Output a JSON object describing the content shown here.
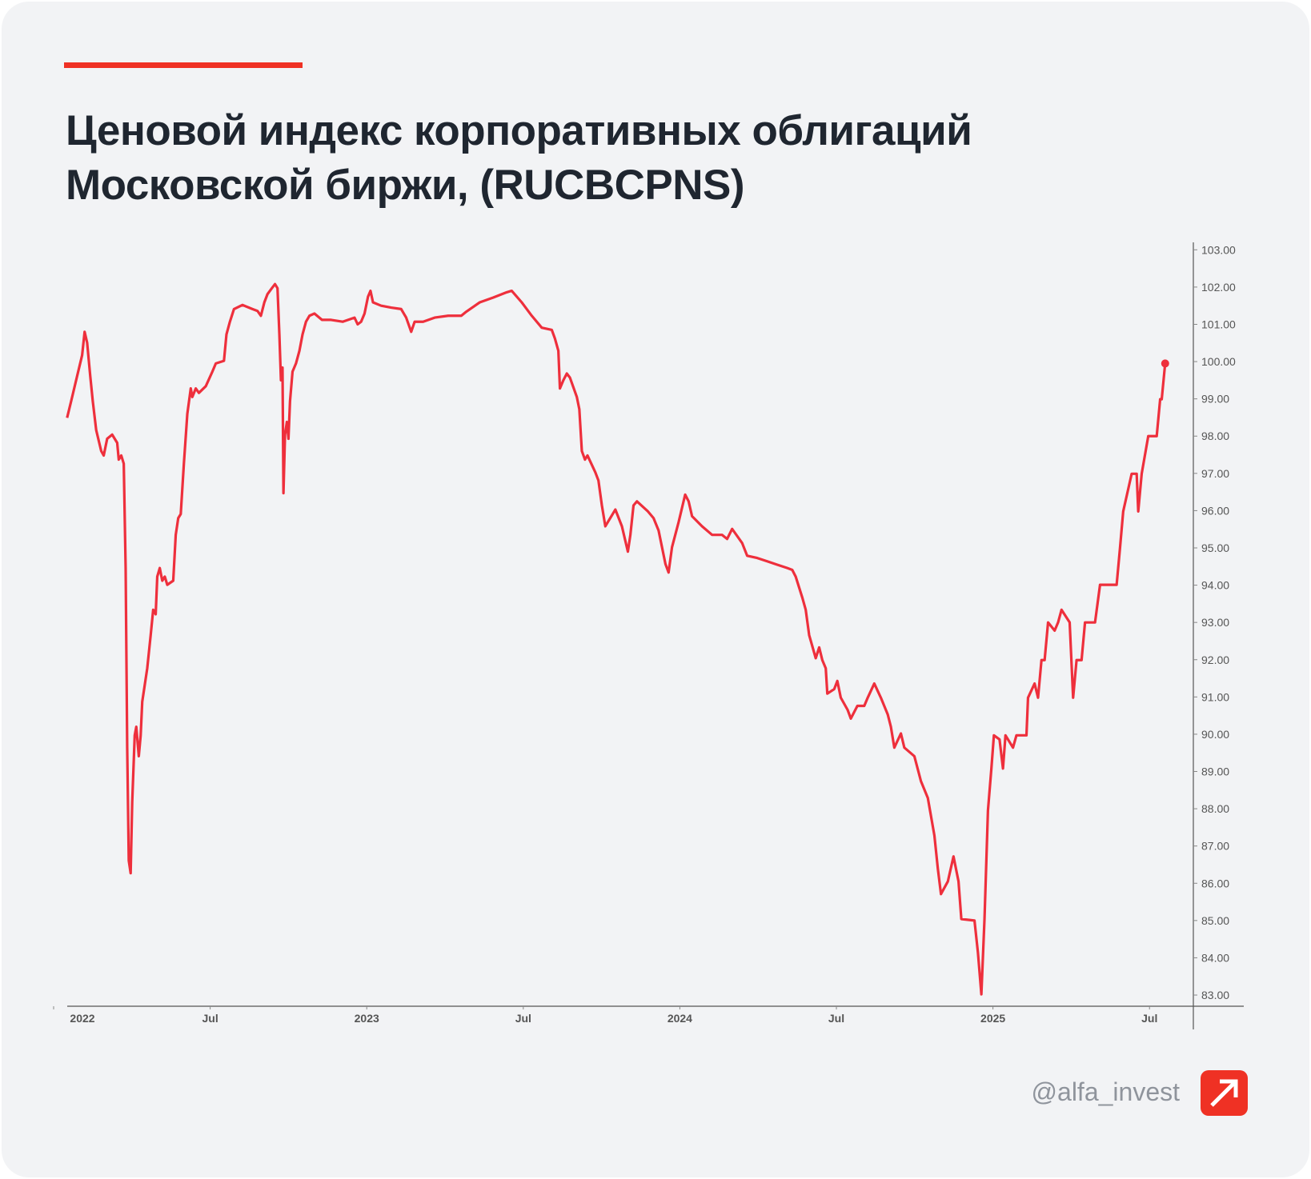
{
  "chart_data": {
    "type": "line",
    "title": "Ценовой индекс корпоративных облигаций Московской биржи, (RUCBCPNS)",
    "color": "#ee2f3c",
    "x": [
      2022.043,
      2022.056,
      2022.075,
      2022.091,
      2022.099,
      2022.107,
      2022.117,
      2022.125,
      2022.136,
      2022.152,
      2022.16,
      2022.171,
      2022.187,
      2022.203,
      2022.208,
      2022.216,
      2022.224,
      2022.23,
      2022.235,
      2022.24,
      2022.246,
      2022.251,
      2022.259,
      2022.264,
      2022.272,
      2022.278,
      2022.283,
      2022.299,
      2022.31,
      2022.318,
      2022.326,
      2022.331,
      2022.339,
      2022.347,
      2022.355,
      2022.363,
      2022.382,
      2022.39,
      2022.398,
      2022.406,
      2022.416,
      2022.427,
      2022.438,
      2022.443,
      2022.454,
      2022.464,
      2022.486,
      2022.507,
      2022.518,
      2022.544,
      2022.552,
      2022.563,
      2022.576,
      2022.603,
      2022.635,
      2022.651,
      2022.662,
      2022.673,
      2022.683,
      2022.697,
      2022.707,
      2022.715,
      2022.721,
      2022.726,
      2022.731,
      2022.734,
      2022.739,
      2022.745,
      2022.75,
      2022.755,
      2022.763,
      2022.774,
      2022.785,
      2022.795,
      2022.806,
      2022.817,
      2022.833,
      2022.857,
      2022.886,
      2022.923,
      2022.961,
      2022.971,
      2022.982,
      2022.993,
      2023.004,
      2023.012,
      2023.02,
      2023.046,
      2023.078,
      2023.11,
      2023.126,
      2023.142,
      2023.153,
      2023.18,
      2023.217,
      2023.26,
      2023.302,
      2023.318,
      2023.361,
      2023.404,
      2023.447,
      2023.463,
      2023.495,
      2023.527,
      2023.559,
      2023.591,
      2023.601,
      2023.612,
      2023.617,
      2023.628,
      2023.639,
      2023.649,
      2023.671,
      2023.679,
      2023.687,
      2023.697,
      2023.705,
      2023.73,
      2023.74,
      2023.751,
      2023.762,
      2023.794,
      2023.815,
      2023.834,
      2023.842,
      2023.852,
      2023.863,
      2023.898,
      2023.916,
      2023.932,
      2023.954,
      2023.964,
      2023.975,
      2023.996,
      2024.017,
      2024.028,
      2024.039,
      2024.071,
      2024.103,
      2024.135,
      2024.151,
      2024.167,
      2024.199,
      2024.215,
      2024.247,
      2024.279,
      2024.311,
      2024.343,
      2024.359,
      2024.37,
      2024.391,
      2024.402,
      2024.413,
      2024.434,
      2024.445,
      2024.455,
      2024.466,
      2024.471,
      2024.493,
      2024.503,
      2024.514,
      2024.536,
      2024.546,
      2024.567,
      2024.589,
      2024.6,
      2024.621,
      2024.642,
      2024.664,
      2024.674,
      2024.685,
      2024.706,
      2024.717,
      2024.749,
      2024.77,
      2024.792,
      2024.813,
      2024.824,
      2024.834,
      2024.856,
      2024.874,
      2024.89,
      2024.899,
      2024.941,
      2024.952,
      2024.963,
      2024.973,
      2024.984,
      2024.995,
      2025.003,
      2025.021,
      2025.032,
      2025.04,
      2025.064,
      2025.075,
      2025.107,
      2025.112,
      2025.133,
      2025.144,
      2025.155,
      2025.165,
      2025.176,
      2025.197,
      2025.208,
      2025.219,
      2025.245,
      2025.256,
      2025.267,
      2025.283,
      2025.294,
      2025.326,
      2025.342,
      2025.395,
      2025.406,
      2025.416,
      2025.443,
      2025.459,
      2025.464,
      2025.475,
      2025.496,
      2025.523,
      2025.534,
      2025.539,
      2025.55
    ],
    "values": [
      98.49,
      98.94,
      99.61,
      100.17,
      100.8,
      100.51,
      99.61,
      98.94,
      98.16,
      97.6,
      97.48,
      97.93,
      98.04,
      97.82,
      97.37,
      97.48,
      97.26,
      94.46,
      89.64,
      86.61,
      86.27,
      88.18,
      89.97,
      90.2,
      89.41,
      89.97,
      90.87,
      91.77,
      92.66,
      93.34,
      93.22,
      94.23,
      94.46,
      94.12,
      94.23,
      94.01,
      94.12,
      95.35,
      95.8,
      95.91,
      97.26,
      98.6,
      99.28,
      99.05,
      99.28,
      99.16,
      99.34,
      99.73,
      99.95,
      100.02,
      100.73,
      101.07,
      101.41,
      101.52,
      101.41,
      101.36,
      101.23,
      101.59,
      101.81,
      101.97,
      102.08,
      101.97,
      100.73,
      99.5,
      99.84,
      96.47,
      98.04,
      98.38,
      97.93,
      98.94,
      99.73,
      99.95,
      100.29,
      100.73,
      101.07,
      101.23,
      101.29,
      101.12,
      101.12,
      101.07,
      101.18,
      101.0,
      101.07,
      101.29,
      101.74,
      101.9,
      101.59,
      101.5,
      101.45,
      101.41,
      101.18,
      100.8,
      101.07,
      101.07,
      101.18,
      101.23,
      101.23,
      101.34,
      101.59,
      101.72,
      101.86,
      101.9,
      101.59,
      101.23,
      100.91,
      100.85,
      100.62,
      100.29,
      99.28,
      99.5,
      99.68,
      99.57,
      99.05,
      98.72,
      97.6,
      97.37,
      97.48,
      97.03,
      96.81,
      96.14,
      95.58,
      96.03,
      95.58,
      94.9,
      95.35,
      96.14,
      96.25,
      95.98,
      95.8,
      95.47,
      94.57,
      94.34,
      95.02,
      95.69,
      96.43,
      96.25,
      95.85,
      95.58,
      95.35,
      95.35,
      95.24,
      95.51,
      95.13,
      94.79,
      94.73,
      94.64,
      94.55,
      94.46,
      94.41,
      94.23,
      93.67,
      93.34,
      92.66,
      92.04,
      92.33,
      91.99,
      91.77,
      91.09,
      91.21,
      91.43,
      90.98,
      90.65,
      90.42,
      90.76,
      90.76,
      90.98,
      91.36,
      90.98,
      90.53,
      90.2,
      89.64,
      90.02,
      89.64,
      89.41,
      88.74,
      88.29,
      87.28,
      86.39,
      85.71,
      86.05,
      86.72,
      86.05,
      85.04,
      85.0,
      84.14,
      83.02,
      85.04,
      87.95,
      89.08,
      89.97,
      89.86,
      89.08,
      89.97,
      89.64,
      89.97,
      89.97,
      90.98,
      91.36,
      90.98,
      91.99,
      91.99,
      93.0,
      92.78,
      93.0,
      93.34,
      93.0,
      90.98,
      91.99,
      91.99,
      93.0,
      93.0,
      94.01,
      94.01,
      95.02,
      95.98,
      96.99,
      96.99,
      95.98,
      96.99,
      98.0,
      98.0,
      98.99,
      98.99,
      99.95
    ],
    "xlim": [
      2022,
      2025.64
    ],
    "xticks": [
      {
        "value": 2022,
        "label": "2022"
      },
      {
        "value": 2022.5,
        "label": "Jul"
      },
      {
        "value": 2023,
        "label": "2023"
      },
      {
        "value": 2023.5,
        "label": "Jul"
      },
      {
        "value": 2024,
        "label": "2024"
      },
      {
        "value": 2024.5,
        "label": "Jul"
      },
      {
        "value": 2025,
        "label": "2025"
      },
      {
        "value": 2025.5,
        "label": "Jul"
      }
    ],
    "ylim": [
      82.7,
      103.2
    ],
    "yticks": [
      {
        "value": 83,
        "label": "83.00"
      },
      {
        "value": 84,
        "label": "84.00"
      },
      {
        "value": 85,
        "label": "85.00"
      },
      {
        "value": 86,
        "label": "86.00"
      },
      {
        "value": 87,
        "label": "87.00"
      },
      {
        "value": 88,
        "label": "88.00"
      },
      {
        "value": 89,
        "label": "89.00"
      },
      {
        "value": 90,
        "label": "90.00"
      },
      {
        "value": 91,
        "label": "91.00"
      },
      {
        "value": 92,
        "label": "92.00"
      },
      {
        "value": 93,
        "label": "93.00"
      },
      {
        "value": 94,
        "label": "94.00"
      },
      {
        "value": 95,
        "label": "95.00"
      },
      {
        "value": 96,
        "label": "96.00"
      },
      {
        "value": 97,
        "label": "97.00"
      },
      {
        "value": 98,
        "label": "98.00"
      },
      {
        "value": 99,
        "label": "99.00"
      },
      {
        "value": 100,
        "label": "100.00"
      },
      {
        "value": 101,
        "label": "101.00"
      },
      {
        "value": 102,
        "label": "102.00"
      },
      {
        "value": 103,
        "label": "103.00"
      }
    ],
    "y_axis_side": "right",
    "grid": false
  },
  "footer": {
    "handle": "@alfa_invest"
  }
}
